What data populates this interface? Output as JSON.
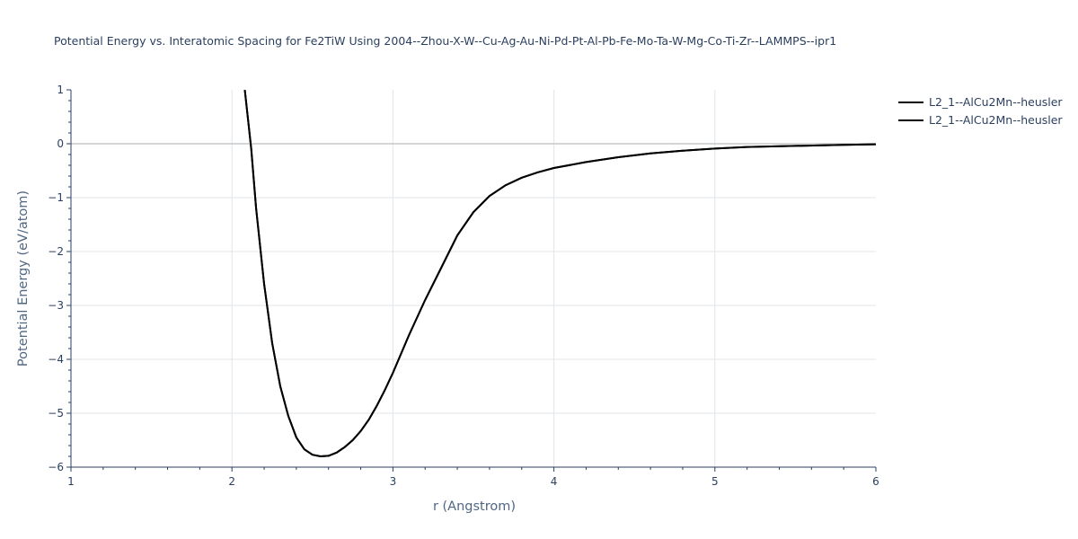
{
  "chart_data": {
    "type": "line",
    "title": "Potential Energy vs. Interatomic Spacing for Fe2TiW Using 2004--Zhou-X-W--Cu-Ag-Au-Ni-Pd-Pt-Al-Pb-Fe-Mo-Ta-W-Mg-Co-Ti-Zr--LAMMPS--ipr1",
    "xlabel": "r (Angstrom)",
    "ylabel": "Potential Energy (eV/atom)",
    "xlim": [
      1,
      6
    ],
    "ylim": [
      -6,
      1
    ],
    "x_ticks": [
      "1",
      "2",
      "3",
      "4",
      "5",
      "6"
    ],
    "y_ticks": [
      "1",
      "0",
      "−1",
      "−2",
      "−3",
      "−4",
      "−5",
      "−6"
    ],
    "grid": true,
    "legend_position": "top-right",
    "series": [
      {
        "name": "L2_1--AlCu2Mn--heusler",
        "color": "#000000",
        "x": [
          2.08,
          2.1,
          2.12,
          2.15,
          2.2,
          2.25,
          2.3,
          2.35,
          2.4,
          2.45,
          2.5,
          2.55,
          2.6,
          2.65,
          2.7,
          2.75,
          2.8,
          2.85,
          2.9,
          2.95,
          3.0,
          3.1,
          3.2,
          3.3,
          3.4,
          3.5,
          3.6,
          3.7,
          3.8,
          3.9,
          4.0,
          4.2,
          4.4,
          4.6,
          4.8,
          5.0,
          5.2,
          5.5,
          5.8,
          6.0
        ],
        "y": [
          1.0,
          0.45,
          -0.1,
          -1.2,
          -2.6,
          -3.7,
          -4.5,
          -5.05,
          -5.45,
          -5.67,
          -5.77,
          -5.8,
          -5.79,
          -5.73,
          -5.63,
          -5.5,
          -5.33,
          -5.12,
          -4.86,
          -4.57,
          -4.25,
          -3.55,
          -2.9,
          -2.3,
          -1.7,
          -1.27,
          -0.97,
          -0.77,
          -0.63,
          -0.53,
          -0.45,
          -0.34,
          -0.25,
          -0.18,
          -0.13,
          -0.09,
          -0.06,
          -0.04,
          -0.02,
          -0.01
        ]
      },
      {
        "name": "L2_1--AlCu2Mn--heusler",
        "color": "#000000",
        "x": [
          2.08,
          2.1,
          2.12,
          2.15,
          2.2,
          2.25,
          2.3,
          2.35,
          2.4,
          2.45,
          2.5,
          2.55,
          2.6,
          2.65,
          2.7,
          2.75,
          2.8,
          2.85,
          2.9,
          2.95,
          3.0,
          3.1,
          3.2,
          3.3,
          3.4,
          3.5,
          3.6,
          3.7,
          3.8,
          3.9,
          4.0,
          4.2,
          4.4,
          4.6,
          4.8,
          5.0,
          5.2,
          5.5,
          5.8,
          6.0
        ],
        "y": [
          1.0,
          0.45,
          -0.1,
          -1.2,
          -2.6,
          -3.7,
          -4.5,
          -5.05,
          -5.45,
          -5.67,
          -5.77,
          -5.8,
          -5.79,
          -5.73,
          -5.63,
          -5.5,
          -5.33,
          -5.12,
          -4.86,
          -4.57,
          -4.25,
          -3.55,
          -2.9,
          -2.3,
          -1.7,
          -1.27,
          -0.97,
          -0.77,
          -0.63,
          -0.53,
          -0.45,
          -0.34,
          -0.25,
          -0.18,
          -0.13,
          -0.09,
          -0.06,
          -0.04,
          -0.02,
          -0.01
        ]
      }
    ]
  }
}
